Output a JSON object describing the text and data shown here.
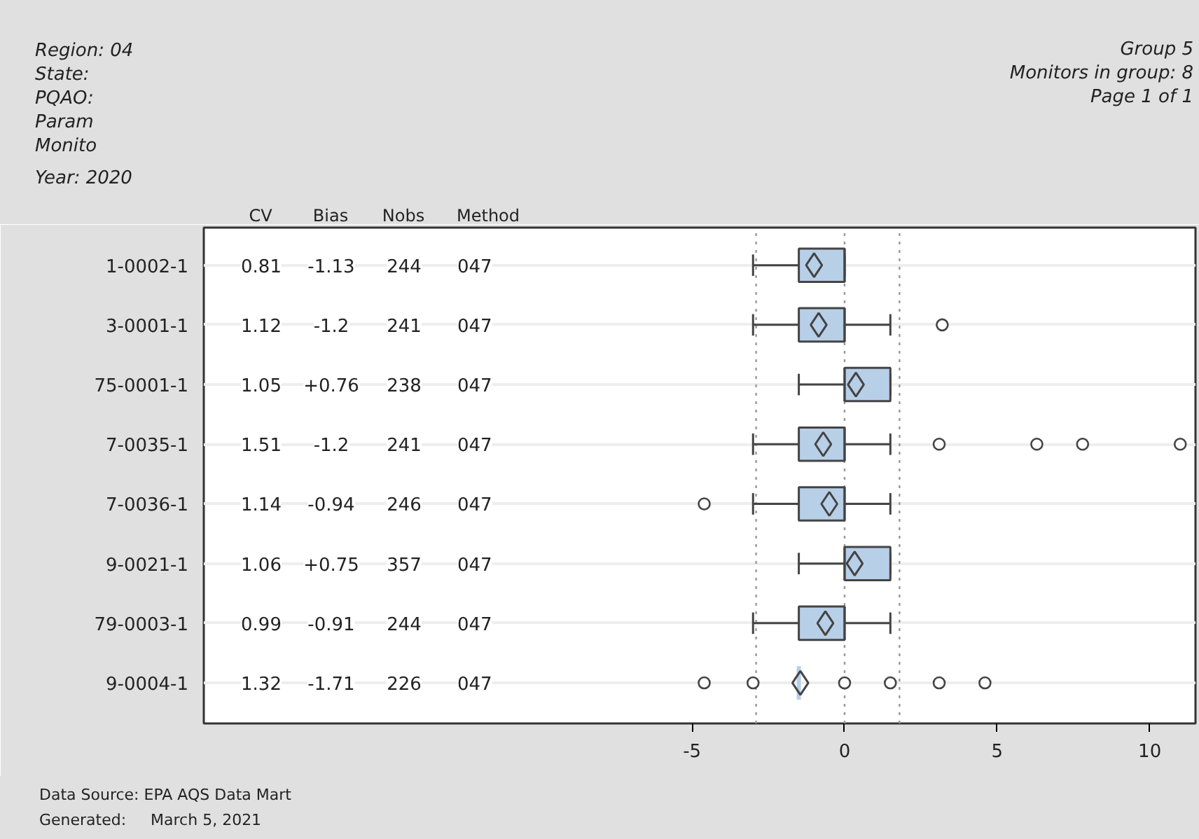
{
  "chart_data": {
    "type": "box",
    "orientation": "horizontal",
    "color": "#b8cfe8",
    "categories": [
      "1-0002-1",
      "3-0001-1",
      "75-0001-1",
      "7-0035-1",
      "7-0036-1",
      "9-0021-1",
      "79-0003-1",
      "9-0004-1"
    ],
    "boxes": [
      {
        "low": -3.0,
        "q1": -1.5,
        "median": 0,
        "q3": 0,
        "high": 0,
        "mean": -1.0
      },
      {
        "low": -3.0,
        "q1": -1.5,
        "median": 0,
        "q3": 0,
        "high": 1.5,
        "mean": -0.85,
        "outliers": [
          3.2
        ]
      },
      {
        "low": -1.5,
        "q1": 0,
        "median": 0,
        "q3": 1.5,
        "high": 1.5,
        "mean": 0.37
      },
      {
        "low": -3.0,
        "q1": -1.5,
        "median": 0,
        "q3": 0,
        "high": 1.5,
        "mean": -0.7,
        "outliers": [
          3.1,
          6.3,
          7.8,
          11.0
        ]
      },
      {
        "low": -3.0,
        "q1": -1.5,
        "median": 0,
        "q3": 0,
        "high": 1.5,
        "mean": -0.5,
        "outliers": [
          -4.6
        ]
      },
      {
        "low": -1.5,
        "q1": 0,
        "median": 0,
        "q3": 1.5,
        "high": 1.5,
        "mean": 0.33
      },
      {
        "low": -3.0,
        "q1": -1.5,
        "median": 0,
        "q3": 0,
        "high": 1.5,
        "mean": -0.63
      },
      {
        "low": -1.5,
        "q1": -1.5,
        "median": -1.5,
        "q3": -1.5,
        "high": -1.5,
        "mean": -1.45,
        "outliers": [
          -4.6,
          -3.0,
          0,
          1.5,
          3.1,
          4.6
        ]
      }
    ],
    "xlim": [
      -21,
      11.5
    ],
    "xticks": [
      -5,
      0,
      5,
      10
    ],
    "grid": "y",
    "ref_lines": [
      {
        "axis": "x",
        "value": -2.9,
        "line_style": "dotted",
        "color": "#999999"
      },
      {
        "axis": "x",
        "value": 0,
        "line_style": "dotted",
        "color": "#999999"
      },
      {
        "axis": "x",
        "value": 1.8,
        "line_style": "dotted",
        "color": "#999999"
      }
    ],
    "annotations": [
      "Region: 04",
      "State:",
      "PQAO:",
      "Param",
      "Monito",
      "Year: 2020",
      "Group 5",
      "Monitors in group: 8",
      "Page 1 of 1",
      "CV",
      "Bias",
      "Nobs",
      "Method",
      "0.81",
      "-1.13",
      "244",
      "047",
      "1.12",
      "-1.2",
      "241",
      "047",
      "1.05",
      "+0.76",
      "238",
      "047",
      "1.51",
      "-1.2",
      "241",
      "047",
      "1.14",
      "-0.94",
      "246",
      "047",
      "1.06",
      "+0.75",
      "357",
      "047",
      "0.99",
      "-0.91",
      "244",
      "047",
      "1.32",
      "-1.71",
      "226",
      "047",
      "Data Source: EPA AQS Data Mart",
      "Generated:     March 5, 2021"
    ]
  }
}
